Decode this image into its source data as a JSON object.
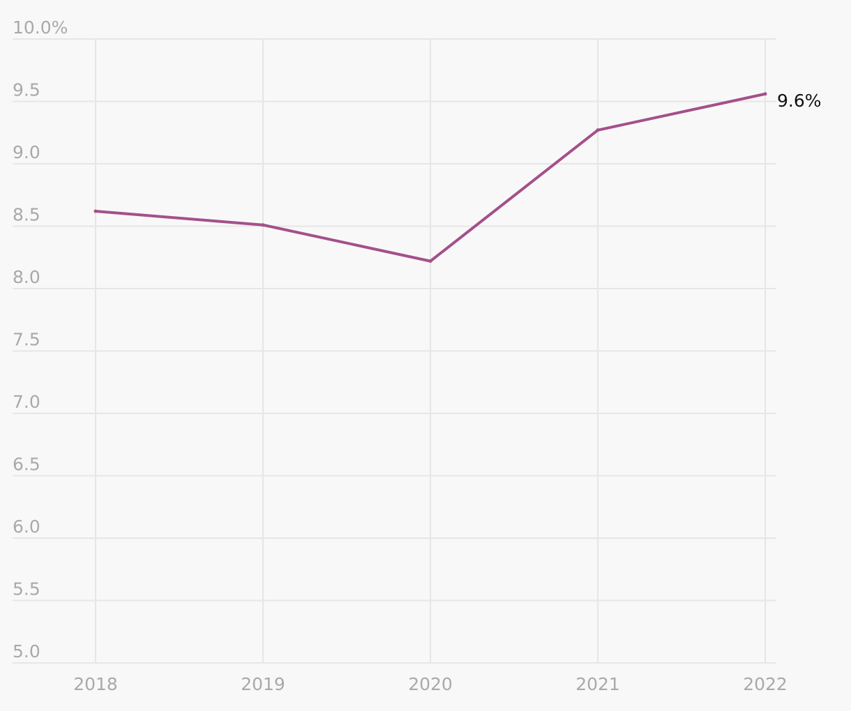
{
  "chart_data": {
    "type": "line",
    "title": "",
    "xlabel": "",
    "ylabel": "",
    "x": [
      "2018",
      "2019",
      "2020",
      "2021",
      "2022"
    ],
    "series": [
      {
        "values": [
          8.62,
          8.51,
          8.22,
          9.27,
          9.56
        ],
        "color": "#a4508a"
      }
    ],
    "ylim": [
      5.0,
      10.0
    ],
    "y_ticks": [
      5.0,
      5.5,
      6.0,
      6.5,
      7.0,
      7.5,
      8.0,
      8.5,
      9.0,
      9.5,
      10.0
    ],
    "y_tick_labels": [
      "5.0",
      "5.5",
      "6.0",
      "6.5",
      "7.0",
      "7.5",
      "8.0",
      "8.5",
      "9.0",
      "9.5",
      "10.0%"
    ],
    "x_tick_labels": [
      "2018",
      "2019",
      "2020",
      "2021",
      "2022"
    ],
    "end_label": "9.6%",
    "grid": true,
    "grid_color": "#e6e6e6",
    "background": "#f8f8f8"
  }
}
